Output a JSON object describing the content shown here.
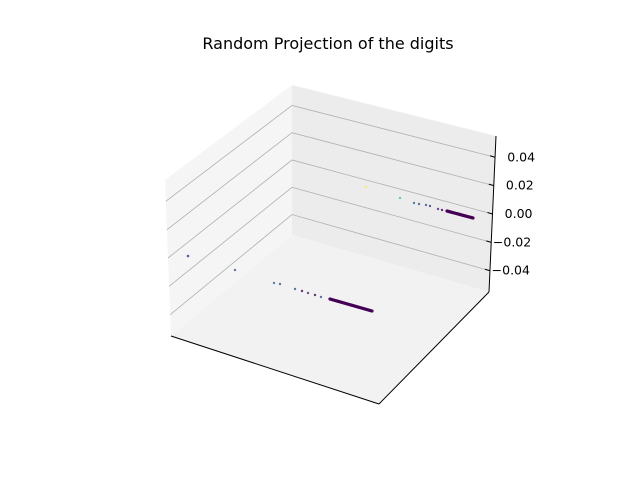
{
  "chart_data": {
    "type": "scatter",
    "title": "Random Projection of the digits",
    "xlabel": "",
    "ylabel": "",
    "zlabel": "",
    "projection": "3d",
    "x_ticks_visible": false,
    "y_ticks_visible": false,
    "zlim": [
      -0.055,
      0.055
    ],
    "z_ticks": [
      {
        "value": 0.04,
        "label": "0.04"
      },
      {
        "value": 0.02,
        "label": "0.02"
      },
      {
        "value": 0.0,
        "label": "0.00"
      },
      {
        "value": -0.02,
        "label": "−0.02"
      },
      {
        "value": -0.04,
        "label": "−0.04"
      }
    ],
    "grid": true,
    "colormap": "viridis",
    "pane_color": "#f2f2f2",
    "point_color_dominant": "#440154"
  }
}
